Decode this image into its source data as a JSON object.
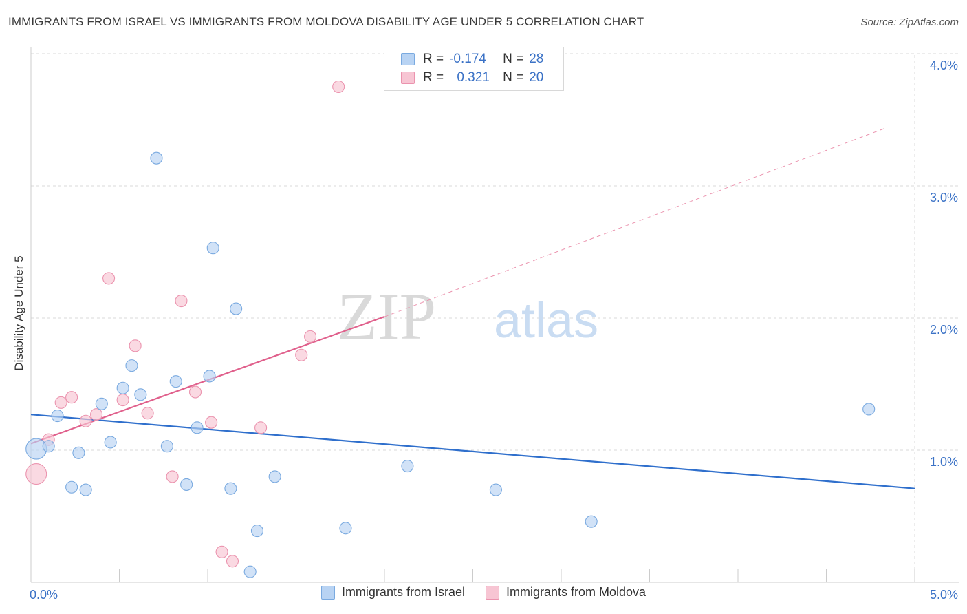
{
  "title": "IMMIGRANTS FROM ISRAEL VS IMMIGRANTS FROM MOLDOVA DISABILITY AGE UNDER 5 CORRELATION CHART",
  "source": "Source: ZipAtlas.com",
  "watermark": {
    "zip": "ZIP",
    "atlas": "atlas"
  },
  "stats": {
    "israel": {
      "r_label": "R =",
      "r_value": "-0.174",
      "n_label": "N =",
      "n_value": "28"
    },
    "moldova": {
      "r_label": "R =",
      "r_value": "0.321",
      "n_label": "N =",
      "n_value": "20"
    }
  },
  "legend": {
    "israel": "Immigrants from Israel",
    "moldova": "Immigrants from Moldova"
  },
  "colors": {
    "israel_fill": "#b8d3f3",
    "israel_stroke": "#7aaae0",
    "israel_line": "#2f6fcc",
    "moldova_fill": "#f7c5d3",
    "moldova_stroke": "#eb93ae",
    "moldova_line": "#e0608c",
    "tick_label": "#3b72c6",
    "grid": "#d9d9d9"
  },
  "chart_data": {
    "type": "scatter",
    "title": "IMMIGRANTS FROM ISRAEL VS IMMIGRANTS FROM MOLDOVA DISABILITY AGE UNDER 5 CORRELATION CHART",
    "xlabel": "",
    "ylabel": "Disability Age Under 5",
    "xlim": [
      0,
      5
    ],
    "ylim": [
      0,
      4.1
    ],
    "x_unit": "%",
    "y_unit": "%",
    "x_tick_labels": [
      {
        "value": 0,
        "label": "0.0%"
      },
      {
        "value": 5,
        "label": "5.0%"
      }
    ],
    "y_tick_labels": [
      {
        "value": 1,
        "label": "1.0%"
      },
      {
        "value": 2,
        "label": "2.0%"
      },
      {
        "value": 3,
        "label": "3.0%"
      },
      {
        "value": 4,
        "label": "4.0%"
      }
    ],
    "grid": true,
    "legend_position": "bottom",
    "series": [
      {
        "name": "Immigrants from Israel",
        "points": [
          {
            "x": 0.03,
            "y": 1.01,
            "size": 3
          },
          {
            "x": 0.1,
            "y": 1.03,
            "size": 1
          },
          {
            "x": 0.15,
            "y": 1.26,
            "size": 1
          },
          {
            "x": 0.23,
            "y": 0.72,
            "size": 1
          },
          {
            "x": 0.27,
            "y": 0.98,
            "size": 1
          },
          {
            "x": 0.31,
            "y": 0.7,
            "size": 1
          },
          {
            "x": 0.4,
            "y": 1.35,
            "size": 1
          },
          {
            "x": 0.45,
            "y": 1.06,
            "size": 1
          },
          {
            "x": 0.52,
            "y": 1.47,
            "size": 1
          },
          {
            "x": 0.57,
            "y": 1.64,
            "size": 1
          },
          {
            "x": 0.62,
            "y": 1.42,
            "size": 1
          },
          {
            "x": 0.71,
            "y": 3.21,
            "size": 1
          },
          {
            "x": 0.77,
            "y": 1.03,
            "size": 1
          },
          {
            "x": 0.82,
            "y": 1.52,
            "size": 1
          },
          {
            "x": 0.88,
            "y": 0.74,
            "size": 1
          },
          {
            "x": 0.94,
            "y": 1.17,
            "size": 1
          },
          {
            "x": 1.01,
            "y": 1.56,
            "size": 1
          },
          {
            "x": 1.03,
            "y": 2.53,
            "size": 1
          },
          {
            "x": 1.13,
            "y": 0.71,
            "size": 1
          },
          {
            "x": 1.16,
            "y": 2.07,
            "size": 1
          },
          {
            "x": 1.24,
            "y": 0.08,
            "size": 1
          },
          {
            "x": 1.28,
            "y": 0.39,
            "size": 1
          },
          {
            "x": 1.38,
            "y": 0.8,
            "size": 1
          },
          {
            "x": 1.78,
            "y": 0.41,
            "size": 1
          },
          {
            "x": 2.13,
            "y": 0.88,
            "size": 1
          },
          {
            "x": 2.63,
            "y": 0.7,
            "size": 1
          },
          {
            "x": 3.17,
            "y": 0.46,
            "size": 1
          },
          {
            "x": 4.74,
            "y": 1.31,
            "size": 1
          }
        ],
        "trend": {
          "x0": 0,
          "y0": 1.27,
          "x1": 5,
          "y1": 0.71
        }
      },
      {
        "name": "Immigrants from Moldova",
        "points": [
          {
            "x": 0.03,
            "y": 0.82,
            "size": 3
          },
          {
            "x": 0.1,
            "y": 1.08,
            "size": 1
          },
          {
            "x": 0.17,
            "y": 1.36,
            "size": 1
          },
          {
            "x": 0.23,
            "y": 1.4,
            "size": 1
          },
          {
            "x": 0.31,
            "y": 1.22,
            "size": 1
          },
          {
            "x": 0.37,
            "y": 1.27,
            "size": 1
          },
          {
            "x": 0.44,
            "y": 2.3,
            "size": 1
          },
          {
            "x": 0.52,
            "y": 1.38,
            "size": 1
          },
          {
            "x": 0.59,
            "y": 1.79,
            "size": 1
          },
          {
            "x": 0.66,
            "y": 1.28,
            "size": 1
          },
          {
            "x": 0.8,
            "y": 0.8,
            "size": 1
          },
          {
            "x": 0.85,
            "y": 2.13,
            "size": 1
          },
          {
            "x": 0.93,
            "y": 1.44,
            "size": 1
          },
          {
            "x": 1.02,
            "y": 1.21,
            "size": 1
          },
          {
            "x": 1.08,
            "y": 0.23,
            "size": 1
          },
          {
            "x": 1.14,
            "y": 0.16,
            "size": 1
          },
          {
            "x": 1.3,
            "y": 1.17,
            "size": 1
          },
          {
            "x": 1.53,
            "y": 1.72,
            "size": 1
          },
          {
            "x": 1.58,
            "y": 1.86,
            "size": 1
          },
          {
            "x": 1.74,
            "y": 3.75,
            "size": 1
          }
        ],
        "trend": {
          "x0": 0,
          "y0": 1.05,
          "x1": 2.0,
          "y1": 2.01
        },
        "trend_extension": {
          "x0": 2.0,
          "y0": 2.01,
          "x1": 4.84,
          "y1": 3.44
        }
      }
    ]
  }
}
